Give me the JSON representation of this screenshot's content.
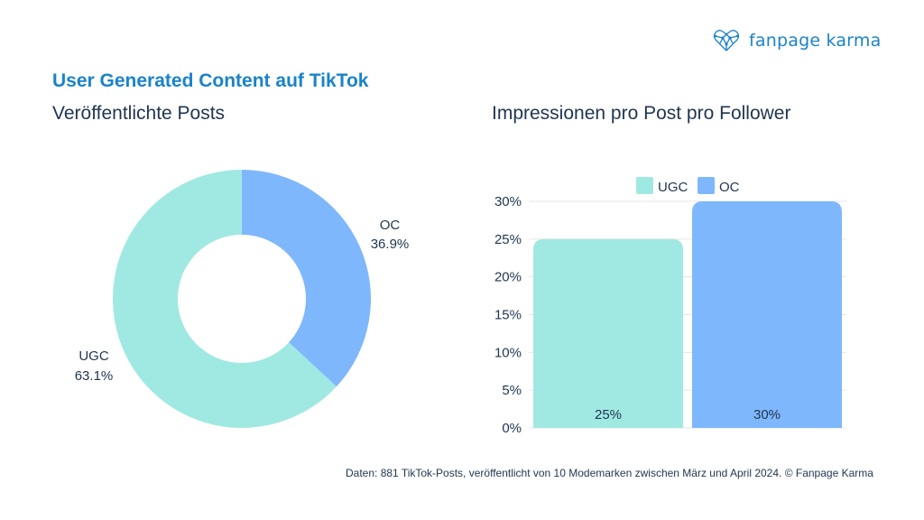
{
  "brand": {
    "name": "fanpage karma",
    "logo_color": "#1a83c9"
  },
  "header": {
    "title": "User Generated Content auf TikTok"
  },
  "colors": {
    "ugc": "#a0e9e2",
    "oc": "#7fb7fd",
    "text": "#1f3550",
    "grid": "#e6e6e6"
  },
  "chart_data": [
    {
      "type": "pie",
      "title": "Veröffentlichte Posts",
      "donut": true,
      "slices": [
        {
          "label": "OC",
          "value": 36.9,
          "display": "36.9%",
          "color": "#7fb7fd"
        },
        {
          "label": "UGC",
          "value": 63.1,
          "display": "63.1%",
          "color": "#a0e9e2"
        }
      ]
    },
    {
      "type": "bar",
      "title": "Impressionen pro Post pro Follower",
      "categories": [
        "UGC",
        "OC"
      ],
      "values": [
        25,
        30
      ],
      "value_labels": [
        "25%",
        "30%"
      ],
      "colors": [
        "#a0e9e2",
        "#7fb7fd"
      ],
      "ylim": [
        0,
        30
      ],
      "yticks": [
        0,
        5,
        10,
        15,
        20,
        25,
        30
      ],
      "ytick_labels": [
        "0%",
        "5%",
        "10%",
        "15%",
        "20%",
        "25%",
        "30%"
      ],
      "legend": [
        {
          "label": "UGC",
          "color": "#a0e9e2"
        },
        {
          "label": "OC",
          "color": "#7fb7fd"
        }
      ],
      "legend_position": "top",
      "grid": true
    }
  ],
  "footer": {
    "source": "Daten: 881 TikTok-Posts, veröffentlicht von 10 Modemarken zwischen März und April 2024. © Fanpage Karma"
  }
}
